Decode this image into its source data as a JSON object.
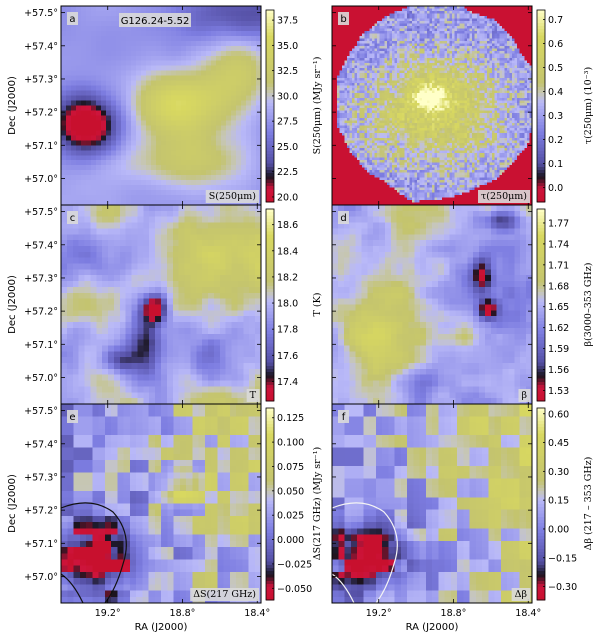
{
  "chart_data": {
    "type": "heatmap",
    "field_name": "G126.24-5.52",
    "x_axis": {
      "label": "RA (J2000)",
      "ticks": [
        "19.2°",
        "18.8°",
        "18.4°"
      ],
      "tick_values": [
        19.2,
        18.8,
        18.4
      ],
      "range": [
        19.45,
        18.38
      ]
    },
    "y_axis": {
      "label": "Dec (J2000)",
      "ticks": [
        "+57.0°",
        "+57.1°",
        "+57.2°",
        "+57.3°",
        "+57.4°",
        "+57.5°"
      ],
      "tick_values": [
        57.0,
        57.1,
        57.2,
        57.3,
        57.4,
        57.5
      ],
      "range": [
        56.92,
        57.52
      ]
    },
    "colormap": [
      "#c8102e",
      "#101010",
      "#7878e0",
      "#b8b8ff",
      "#c8c870",
      "#d8d860",
      "#ffffc0"
    ],
    "panels": [
      {
        "id": "a",
        "corner_label": "S(250μm)",
        "colorbar_label": "S(250μm) (MJy sr⁻¹)",
        "colorbar_ticks": [
          "20.0",
          "22.5",
          "25.0",
          "27.5",
          "30.0",
          "32.5",
          "35.0",
          "37.5"
        ],
        "colorbar_values": [
          20.0,
          22.5,
          25.0,
          27.5,
          30.0,
          32.5,
          35.0,
          37.5
        ],
        "vmin": 19.5,
        "vmax": 38.5
      },
      {
        "id": "b",
        "corner_label": "τ(250μm)",
        "colorbar_label": "τ(250μm) (10⁻³)",
        "colorbar_ticks": [
          "0.0",
          "0.1",
          "0.2",
          "0.3",
          "0.4",
          "0.5",
          "0.6",
          "0.7"
        ],
        "colorbar_values": [
          0.0,
          0.1,
          0.2,
          0.3,
          0.4,
          0.5,
          0.6,
          0.7
        ],
        "vmin": -0.06,
        "vmax": 0.74
      },
      {
        "id": "c",
        "corner_label": "T",
        "colorbar_label": "T (K)",
        "colorbar_ticks": [
          "17.4",
          "17.6",
          "17.8",
          "18.0",
          "18.2",
          "18.4",
          "18.6"
        ],
        "colorbar_values": [
          17.4,
          17.6,
          17.8,
          18.0,
          18.2,
          18.4,
          18.6
        ],
        "vmin": 17.25,
        "vmax": 18.72
      },
      {
        "id": "d",
        "corner_label": "β",
        "colorbar_label": "β(3000–353 GHz)",
        "colorbar_ticks": [
          "1.53",
          "1.56",
          "1.59",
          "1.62",
          "1.65",
          "1.68",
          "1.71",
          "1.74",
          "1.77"
        ],
        "colorbar_values": [
          1.53,
          1.56,
          1.59,
          1.62,
          1.65,
          1.68,
          1.71,
          1.74,
          1.77
        ],
        "vmin": 1.515,
        "vmax": 1.79
      },
      {
        "id": "e",
        "corner_label": "ΔS(217 GHz)",
        "colorbar_label": "ΔS(217 GHz) (MJy sr⁻¹)",
        "colorbar_ticks": [
          "−0.050",
          "−0.025",
          "0.000",
          "0.025",
          "0.050",
          "0.075",
          "0.100",
          "0.125"
        ],
        "colorbar_values": [
          -0.05,
          -0.025,
          0.0,
          0.025,
          0.05,
          0.075,
          0.1,
          0.125
        ],
        "vmin": -0.062,
        "vmax": 0.135
      },
      {
        "id": "f",
        "corner_label": "Δβ",
        "colorbar_label": "Δβ (217 – 353 GHz)",
        "colorbar_ticks": [
          "−0.30",
          "−0.15",
          "0.00",
          "0.15",
          "0.30",
          "0.45",
          "0.60"
        ],
        "colorbar_values": [
          -0.3,
          -0.15,
          0.0,
          0.15,
          0.3,
          0.45,
          0.6
        ],
        "vmin": -0.37,
        "vmax": 0.63
      }
    ]
  }
}
